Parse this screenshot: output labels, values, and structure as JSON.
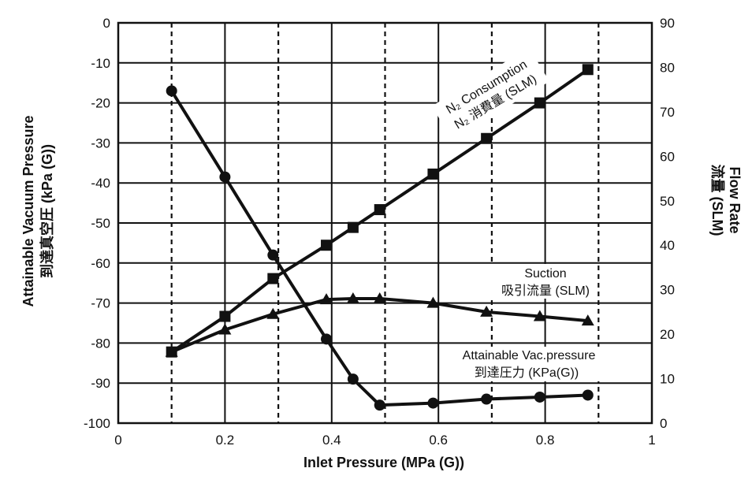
{
  "chart_data": {
    "type": "line",
    "x_label": "Inlet Pressure (MPa (G))",
    "y_left_label_line1": "Attainable Vacuum Pressure",
    "y_left_label_line2": "到達真空圧 (kPa (G))",
    "y_right_label_line1": "Flow Rate",
    "y_right_label_line2": "流量 (SLM)",
    "x_range": [
      0,
      1
    ],
    "x_ticks": [
      "0",
      "0.2",
      "0.4",
      "0.6",
      "0.8",
      "1"
    ],
    "x_dashed_gridlines": [
      0.1,
      0.3,
      0.5,
      0.7,
      0.9
    ],
    "y_left_range": [
      -100,
      0
    ],
    "y_left_ticks": [
      "0",
      "-10",
      "-20",
      "-30",
      "-40",
      "-50",
      "-60",
      "-70",
      "-80",
      "-90",
      "-100"
    ],
    "y_right_range": [
      0,
      90
    ],
    "y_right_ticks": [
      "0",
      "10",
      "20",
      "30",
      "40",
      "50",
      "60",
      "70",
      "80",
      "90"
    ],
    "grid": true,
    "series": [
      {
        "axis": "left",
        "marker": "circle",
        "label_line1": "Attainable Vac.pressure",
        "label_line2": "到達圧力 (KPa(G))",
        "x": [
          0.1,
          0.2,
          0.29,
          0.39,
          0.44,
          0.49,
          0.59,
          0.69,
          0.79,
          0.88
        ],
        "y": [
          -17,
          -38.5,
          -58,
          -79,
          -89,
          -95.5,
          -95,
          -94,
          -93.5,
          -93
        ]
      },
      {
        "axis": "right",
        "marker": "square",
        "label_line1": "N₂ Consumption",
        "label_line2": "N₂ 消費量 (SLM)",
        "x": [
          0.1,
          0.2,
          0.29,
          0.39,
          0.44,
          0.49,
          0.59,
          0.69,
          0.79,
          0.88
        ],
        "y": [
          16,
          24,
          32.5,
          40,
          44,
          48,
          56,
          64,
          72,
          79.5
        ]
      },
      {
        "axis": "right",
        "marker": "triangle",
        "label_line1": "Suction",
        "label_line2": "吸引流量 (SLM)",
        "x": [
          0.1,
          0.2,
          0.29,
          0.39,
          0.44,
          0.49,
          0.59,
          0.69,
          0.79,
          0.88
        ],
        "y": [
          16,
          21,
          24.5,
          27.8,
          28,
          28,
          27,
          25,
          24,
          23
        ]
      }
    ]
  }
}
